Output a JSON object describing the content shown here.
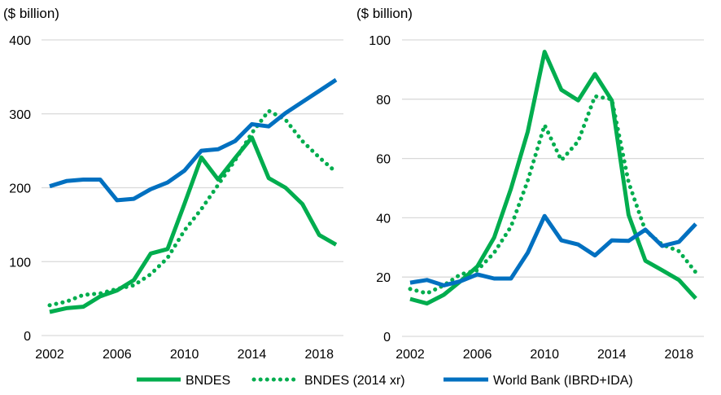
{
  "colors": {
    "bndes": "#00AD4E",
    "world_bank": "#0070C0",
    "grid": "#D9D9D9"
  },
  "legend": {
    "position": "bottom",
    "items": [
      {
        "label": "BNDES",
        "style": "solid",
        "color": "#00AD4E"
      },
      {
        "label": "BNDES (2014 xr)",
        "style": "dotted",
        "color": "#00AD4E"
      },
      {
        "label": "World Bank (IBRD+IDA)",
        "style": "solid",
        "color": "#0070C0"
      }
    ]
  },
  "chart_data": [
    {
      "type": "line",
      "ylabel": "($ billion)",
      "ylim": [
        0,
        400
      ],
      "yticks": [
        0,
        100,
        200,
        300,
        400
      ],
      "xticks": [
        2002,
        2006,
        2010,
        2014,
        2018
      ],
      "grid": true,
      "x": [
        2002,
        2003,
        2004,
        2005,
        2006,
        2007,
        2008,
        2009,
        2010,
        2011,
        2012,
        2013,
        2014,
        2015,
        2016,
        2017,
        2018,
        2019
      ],
      "series": [
        {
          "name": "BNDES",
          "style": "solid",
          "values": [
            32,
            37,
            39,
            53,
            61,
            75,
            111,
            117,
            178,
            241,
            211,
            240,
            268,
            213,
            200,
            178,
            136,
            123
          ]
        },
        {
          "name": "BNDES (2014 xr)",
          "style": "dotted",
          "values": [
            41,
            46,
            55,
            57,
            63,
            68,
            83,
            105,
            142,
            171,
            204,
            237,
            274,
            304,
            292,
            263,
            241,
            221
          ]
        },
        {
          "name": "World Bank (IBRD+IDA)",
          "style": "solid",
          "values": [
            202,
            209,
            211,
            211,
            183,
            185,
            198,
            207,
            223,
            250,
            252,
            263,
            286,
            283,
            301,
            316,
            331,
            346
          ]
        }
      ]
    },
    {
      "type": "line",
      "ylabel": "($ billion)",
      "ylim": [
        0,
        100
      ],
      "yticks": [
        0,
        20,
        40,
        60,
        80,
        100
      ],
      "xticks": [
        2002,
        2006,
        2010,
        2014,
        2018
      ],
      "grid": true,
      "x": [
        2002,
        2003,
        2004,
        2005,
        2006,
        2007,
        2008,
        2009,
        2010,
        2011,
        2012,
        2013,
        2014,
        2015,
        2016,
        2017,
        2018,
        2019
      ],
      "series": [
        {
          "name": "BNDES",
          "style": "solid",
          "values": [
            12.6,
            11.1,
            14,
            18.6,
            23.6,
            33.3,
            49.8,
            69,
            96,
            83.2,
            79.6,
            88.5,
            79.6,
            41,
            25.5,
            22.3,
            19,
            12.8
          ]
        },
        {
          "name": "BNDES (2014 xr)",
          "style": "dotted",
          "values": [
            16,
            14.5,
            17.2,
            20.9,
            22.3,
            28.2,
            37,
            52.5,
            71.3,
            59.4,
            65.8,
            81,
            80,
            52,
            35.6,
            31,
            28.7,
            21.6
          ]
        },
        {
          "name": "World Bank (IBRD+IDA)",
          "style": "solid",
          "values": [
            18.1,
            19,
            17.2,
            18.6,
            20.9,
            19.5,
            19.5,
            28.2,
            40.6,
            32.4,
            31,
            27.3,
            32.4,
            32.2,
            36,
            30.5,
            31.9,
            37.9
          ]
        }
      ]
    }
  ]
}
